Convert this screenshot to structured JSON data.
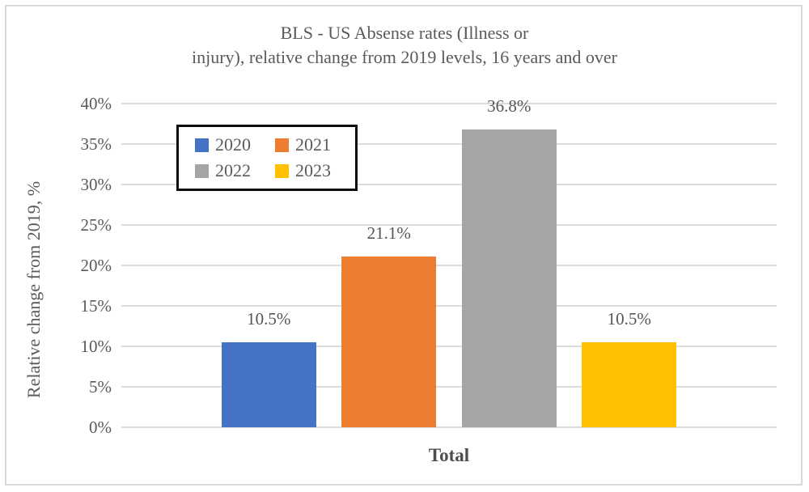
{
  "chart_data": {
    "type": "bar",
    "title_line1": "BLS - US Absense rates (Illness or",
    "title_line2": "injury), relative change from 2019 levels, 16 years and over",
    "ylabel": "Relative change from 2019, %",
    "xlabel": "Total",
    "categories": [
      "Total"
    ],
    "series": [
      {
        "name": "2020",
        "values": [
          10.5
        ],
        "data_label": "10.5%",
        "color": "#4472c4"
      },
      {
        "name": "2021",
        "values": [
          21.1
        ],
        "data_label": "21.1%",
        "color": "#ed7d31"
      },
      {
        "name": "2022",
        "values": [
          36.8
        ],
        "data_label": "36.8%",
        "color": "#a5a5a5"
      },
      {
        "name": "2023",
        "values": [
          10.5
        ],
        "data_label": "10.5%",
        "color": "#ffc000"
      }
    ],
    "ylim": [
      0,
      40
    ],
    "ytick_step": 5,
    "ytick_labels": [
      "0%",
      "5%",
      "10%",
      "15%",
      "20%",
      "25%",
      "30%",
      "35%",
      "40%"
    ],
    "grid": true,
    "legend_position": "upper-left-inside",
    "legend_entries": [
      "2020",
      "2021",
      "2022",
      "2023"
    ]
  },
  "colors": {
    "text": "#5a5a5a",
    "gridline": "#dcdcdc",
    "frame_border": "#d9d9d9",
    "legend_border": "#0d0d0d",
    "bar_blue": "#4472c4",
    "bar_orange": "#ed7d31",
    "bar_gray": "#a5a5a5",
    "bar_yellow": "#ffc000"
  }
}
